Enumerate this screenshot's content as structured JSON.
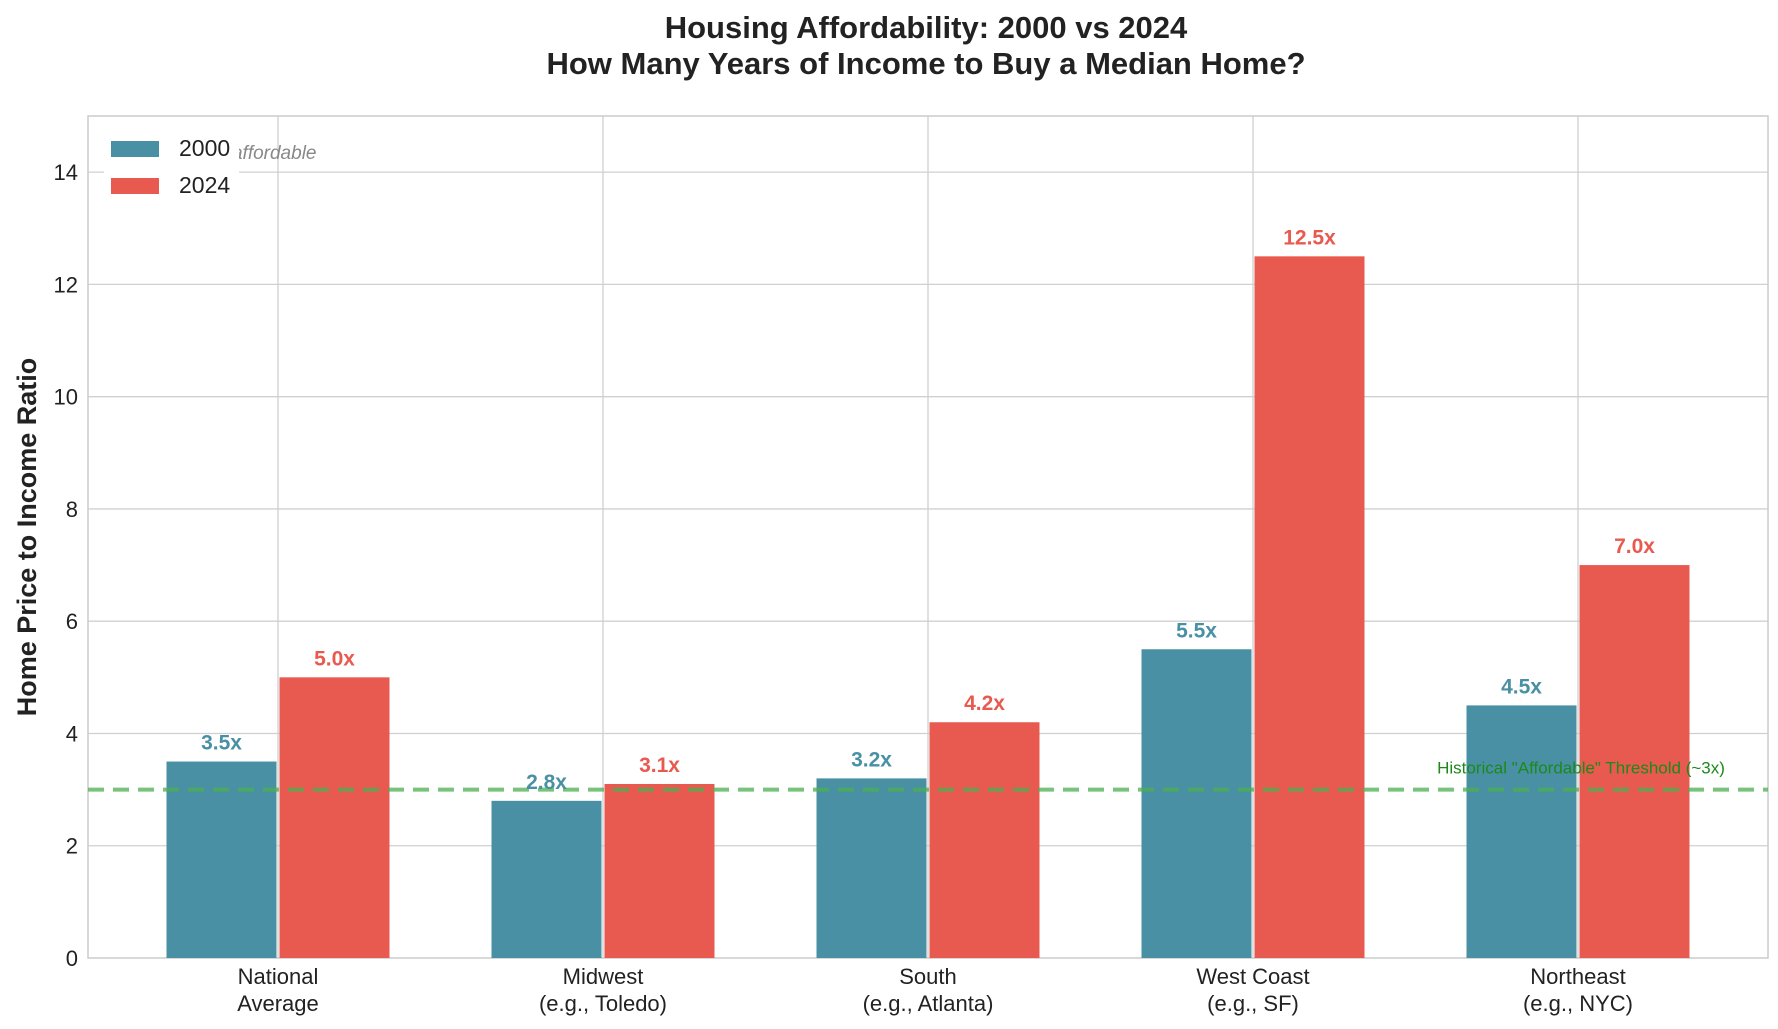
{
  "chart_data": {
    "type": "bar",
    "title_line1": "Housing Affordability: 2000 vs 2024",
    "title_line2": "How Many Years of Income to Buy a Median Home?",
    "ylabel": "Home Price to Income Ratio",
    "xlabel": "",
    "ylim": [
      0,
      15
    ],
    "yticks": [
      0,
      2,
      4,
      6,
      8,
      10,
      12,
      14
    ],
    "grid": true,
    "legend_position": "top-left",
    "categories": [
      [
        "National",
        "Average"
      ],
      [
        "Midwest",
        "(e.g., Toledo)"
      ],
      [
        "South",
        "(e.g., Atlanta)"
      ],
      [
        "West Coast",
        "(e.g., SF)"
      ],
      [
        "Northeast",
        "(e.g., NYC)"
      ]
    ],
    "series": [
      {
        "name": "2000",
        "color": "#4a90a4",
        "values": [
          3.5,
          2.8,
          3.2,
          5.5,
          4.5
        ],
        "labels": [
          "3.5x",
          "2.8x",
          "3.2x",
          "5.5x",
          "4.5x"
        ]
      },
      {
        "name": "2024",
        "color": "#e85a4f",
        "values": [
          5.0,
          3.1,
          4.2,
          12.5,
          7.0
        ],
        "labels": [
          "5.0x",
          "3.1x",
          "4.2x",
          "12.5x",
          "7.0x"
        ]
      }
    ],
    "threshold": {
      "value": 3,
      "label": "Historical \"Affordable\" Threshold (~3x)",
      "color": "#4caf50"
    },
    "annotation": "Lower = More affordable"
  }
}
